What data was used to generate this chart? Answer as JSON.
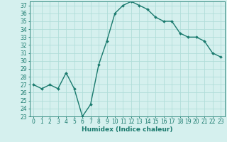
{
  "x": [
    0,
    1,
    2,
    3,
    4,
    5,
    6,
    7,
    8,
    9,
    10,
    11,
    12,
    13,
    14,
    15,
    16,
    17,
    18,
    19,
    20,
    21,
    22,
    23
  ],
  "y": [
    27,
    26.5,
    27,
    26.5,
    28.5,
    26.5,
    23,
    24.5,
    29.5,
    32.5,
    36,
    37,
    37.5,
    37,
    36.5,
    35.5,
    35,
    35,
    33.5,
    33,
    33,
    32.5,
    31,
    30.5
  ],
  "xlabel": "Humidex (Indice chaleur)",
  "ylim": [
    23,
    37.5
  ],
  "xlim": [
    -0.5,
    23.5
  ],
  "yticks": [
    23,
    24,
    25,
    26,
    27,
    28,
    29,
    30,
    31,
    32,
    33,
    34,
    35,
    36,
    37
  ],
  "xticks": [
    0,
    1,
    2,
    3,
    4,
    5,
    6,
    7,
    8,
    9,
    10,
    11,
    12,
    13,
    14,
    15,
    16,
    17,
    18,
    19,
    20,
    21,
    22,
    23
  ],
  "line_color": "#1a7a6e",
  "bg_color": "#d5f0ee",
  "grid_color": "#b0ddd9",
  "marker": "D",
  "marker_size": 2,
  "line_width": 1.0,
  "axis_fontsize": 5.5,
  "xlabel_fontsize": 6.5
}
